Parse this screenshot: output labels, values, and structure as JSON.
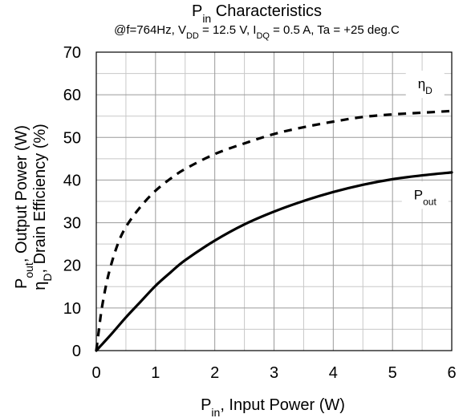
{
  "chart_data": {
    "type": "line",
    "title": "P<sub>in</sub> Characteristics",
    "subtitle": "@f=764Hz, V<sub>DD</sub> = 12.5 V, I<sub>DQ</sub> = 0.5 A, Ta = +25 deg.C",
    "xlabel": "P<sub>in</sub>, Input Power (W)",
    "ylabel_line1": "P<sub>out</sub>, Output Power (W)",
    "ylabel_line2": "η<sub>D</sub>, Drain Efficiency (%)",
    "xlim": [
      0,
      6
    ],
    "ylim": [
      0,
      70
    ],
    "x_ticks": [
      0,
      1,
      2,
      3,
      4,
      5,
      6
    ],
    "x_tick_labels": [
      "0",
      "1",
      "2",
      "3",
      "4",
      "5",
      "6"
    ],
    "y_ticks": [
      0,
      10,
      20,
      30,
      40,
      50,
      60,
      70
    ],
    "y_tick_labels": [
      "0",
      "10",
      "20",
      "30",
      "40",
      "50",
      "60",
      "70"
    ],
    "x_minor_step": 0.5,
    "y_minor_step": 5,
    "grid": true,
    "legend": "inline labels beside curves",
    "colors": {
      "line": "#000000",
      "major_grid": "#9a9a9a",
      "minor_grid": "#c8c8c8"
    },
    "series": [
      {
        "name": "P<sub>out</sub>",
        "style": "solid",
        "label_x": 5.55,
        "label_y": 35.5,
        "x": [
          0,
          0.25,
          0.5,
          0.75,
          1,
          1.25,
          1.5,
          2,
          2.5,
          3,
          3.5,
          4,
          4.5,
          5,
          5.5,
          6
        ],
        "y": [
          0,
          3.8,
          7.8,
          11.5,
          15.2,
          18.3,
          21.2,
          25.8,
          29.6,
          32.6,
          35.1,
          37.2,
          38.9,
          40.2,
          41.1,
          41.8
        ]
      },
      {
        "name": "η<sub>D</sub>",
        "style": "dashed",
        "label_x": 5.55,
        "label_y": 61.5,
        "x": [
          0,
          0.05,
          0.1,
          0.2,
          0.35,
          0.5,
          0.75,
          1,
          1.25,
          1.5,
          2,
          2.5,
          3,
          3.5,
          4,
          4.5,
          5,
          5.5,
          6
        ],
        "y": [
          0,
          5.5,
          10.5,
          17.5,
          24.5,
          29.0,
          33.8,
          37.5,
          40.3,
          42.6,
          46.1,
          48.6,
          50.8,
          52.4,
          53.7,
          54.8,
          55.4,
          55.8,
          56.2
        ]
      }
    ]
  }
}
